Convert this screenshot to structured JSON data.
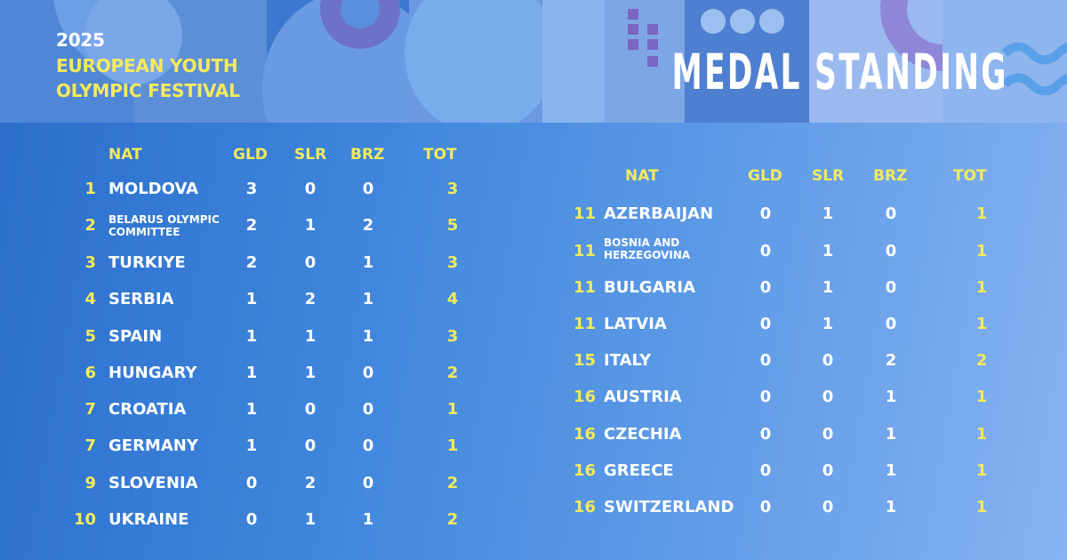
{
  "event": {
    "year": "2025",
    "name_line1": "EUROPEAN YOUTH",
    "name_line2": "OLYMPIC FESTIVAL"
  },
  "headline": "MEDAL STANDING",
  "colors": {
    "accent_yellow": "#f3ea5d",
    "text_white": "#ffffff",
    "background_blue": "#3f86db"
  },
  "table_left": {
    "headers": {
      "nat": "NAT",
      "gld": "GLD",
      "slr": "SLR",
      "brz": "BRZ",
      "tot": "TOT"
    },
    "rows": [
      {
        "rank": "1",
        "nation": "MOLDOVA",
        "gld": "3",
        "slr": "0",
        "brz": "0",
        "tot": "3"
      },
      {
        "rank": "2",
        "nation": "BELARUS OLYMPIC COMMITTEE",
        "gld": "2",
        "slr": "1",
        "brz": "2",
        "tot": "5"
      },
      {
        "rank": "3",
        "nation": "TURKIYE",
        "gld": "2",
        "slr": "0",
        "brz": "1",
        "tot": "3"
      },
      {
        "rank": "4",
        "nation": "SERBIA",
        "gld": "1",
        "slr": "2",
        "brz": "1",
        "tot": "4"
      },
      {
        "rank": "5",
        "nation": "SPAIN",
        "gld": "1",
        "slr": "1",
        "brz": "1",
        "tot": "3"
      },
      {
        "rank": "6",
        "nation": "HUNGARY",
        "gld": "1",
        "slr": "1",
        "brz": "0",
        "tot": "2"
      },
      {
        "rank": "7",
        "nation": "CROATIA",
        "gld": "1",
        "slr": "0",
        "brz": "0",
        "tot": "1"
      },
      {
        "rank": "7",
        "nation": "GERMANY",
        "gld": "1",
        "slr": "0",
        "brz": "0",
        "tot": "1"
      },
      {
        "rank": "9",
        "nation": "SLOVENIA",
        "gld": "0",
        "slr": "2",
        "brz": "0",
        "tot": "2"
      },
      {
        "rank": "10",
        "nation": "UKRAINE",
        "gld": "0",
        "slr": "1",
        "brz": "1",
        "tot": "2"
      }
    ]
  },
  "table_right": {
    "headers": {
      "nat": "NAT",
      "gld": "GLD",
      "slr": "SLR",
      "brz": "BRZ",
      "tot": "TOT"
    },
    "rows": [
      {
        "rank": "11",
        "nation": "AZERBAIJAN",
        "gld": "0",
        "slr": "1",
        "brz": "0",
        "tot": "1"
      },
      {
        "rank": "11",
        "nation": "BOSNIA AND HERZEGOVINA",
        "gld": "0",
        "slr": "1",
        "brz": "0",
        "tot": "1"
      },
      {
        "rank": "11",
        "nation": "BULGARIA",
        "gld": "0",
        "slr": "1",
        "brz": "0",
        "tot": "1"
      },
      {
        "rank": "11",
        "nation": "LATVIA",
        "gld": "0",
        "slr": "1",
        "brz": "0",
        "tot": "1"
      },
      {
        "rank": "15",
        "nation": "ITALY",
        "gld": "0",
        "slr": "0",
        "brz": "2",
        "tot": "2"
      },
      {
        "rank": "16",
        "nation": "AUSTRIA",
        "gld": "0",
        "slr": "0",
        "brz": "1",
        "tot": "1"
      },
      {
        "rank": "16",
        "nation": "CZECHIA",
        "gld": "0",
        "slr": "0",
        "brz": "1",
        "tot": "1"
      },
      {
        "rank": "16",
        "nation": "GREECE",
        "gld": "0",
        "slr": "0",
        "brz": "1",
        "tot": "1"
      },
      {
        "rank": "16",
        "nation": "SWITZERLAND",
        "gld": "0",
        "slr": "0",
        "brz": "1",
        "tot": "1"
      }
    ]
  }
}
